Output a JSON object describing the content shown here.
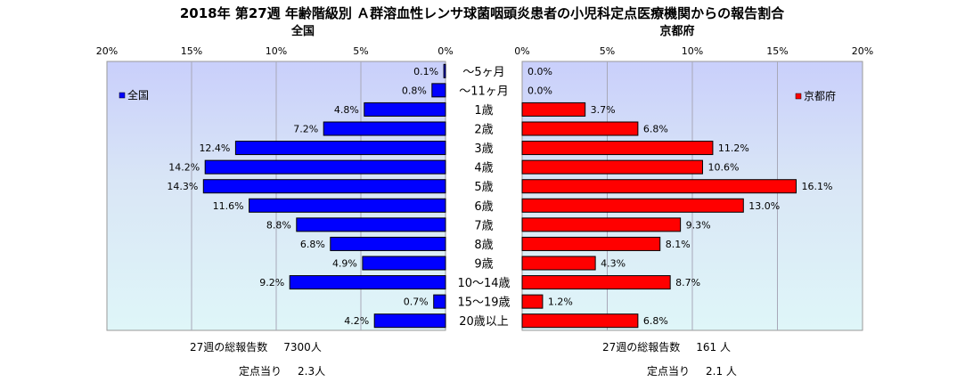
{
  "title": "2018年 第27週 年齢階級別 Ａ群溶血性レンサ球菌咽頭炎患者の小児科定点医療機関からの報告割合",
  "chart_data": {
    "type": "bar",
    "orientation": "horizontal",
    "layout": "back-to-back pyramid",
    "categories": [
      "〜5ヶ月",
      "〜11ヶ月",
      "1歳",
      "2歳",
      "3歳",
      "4歳",
      "5歳",
      "6歳",
      "7歳",
      "8歳",
      "9歳",
      "10〜14歳",
      "15〜19歳",
      "20歳以上"
    ],
    "left": {
      "panel_title": "全国",
      "legend": "全国",
      "legend_position": "top-left",
      "color": "#0000ff",
      "values": [
        0.1,
        0.8,
        4.8,
        7.2,
        12.4,
        14.2,
        14.3,
        11.6,
        8.8,
        6.8,
        4.9,
        9.2,
        0.7,
        4.2
      ],
      "data_labels": [
        "0.1%",
        "0.8%",
        "4.8%",
        "7.2%",
        "12.4%",
        "14.2%",
        "14.3%",
        "11.6%",
        "8.8%",
        "6.8%",
        "4.9%",
        "9.2%",
        "0.7%",
        "4.2%"
      ],
      "ticks": [
        "20%",
        "15%",
        "10%",
        "5%",
        "0%"
      ]
    },
    "right": {
      "panel_title": "京都府",
      "legend": "京都府",
      "legend_position": "top-right",
      "color": "#ff0000",
      "values": [
        0.0,
        0.0,
        3.7,
        6.8,
        11.2,
        10.6,
        16.1,
        13.0,
        9.3,
        8.1,
        4.3,
        8.7,
        1.2,
        6.8
      ],
      "data_labels": [
        "0.0%",
        "0.0%",
        "3.7%",
        "6.8%",
        "11.2%",
        "10.6%",
        "16.1%",
        "13.0%",
        "9.3%",
        "8.1%",
        "4.3%",
        "8.7%",
        "1.2%",
        "6.8%"
      ],
      "ticks": [
        "0%",
        "5%",
        "10%",
        "15%",
        "20%"
      ]
    },
    "xlim": [
      0,
      20
    ],
    "grid": true,
    "plot_background": "#d6dcff"
  },
  "footer": {
    "left": {
      "total_label": "27週の総報告数",
      "total_value": "7300人",
      "per_label": "定点当り",
      "per_value": "2.3人"
    },
    "right": {
      "total_label": "27週の総報告数",
      "total_value": "161 人",
      "per_label": "定点当り",
      "per_value": "2.1 人"
    }
  }
}
